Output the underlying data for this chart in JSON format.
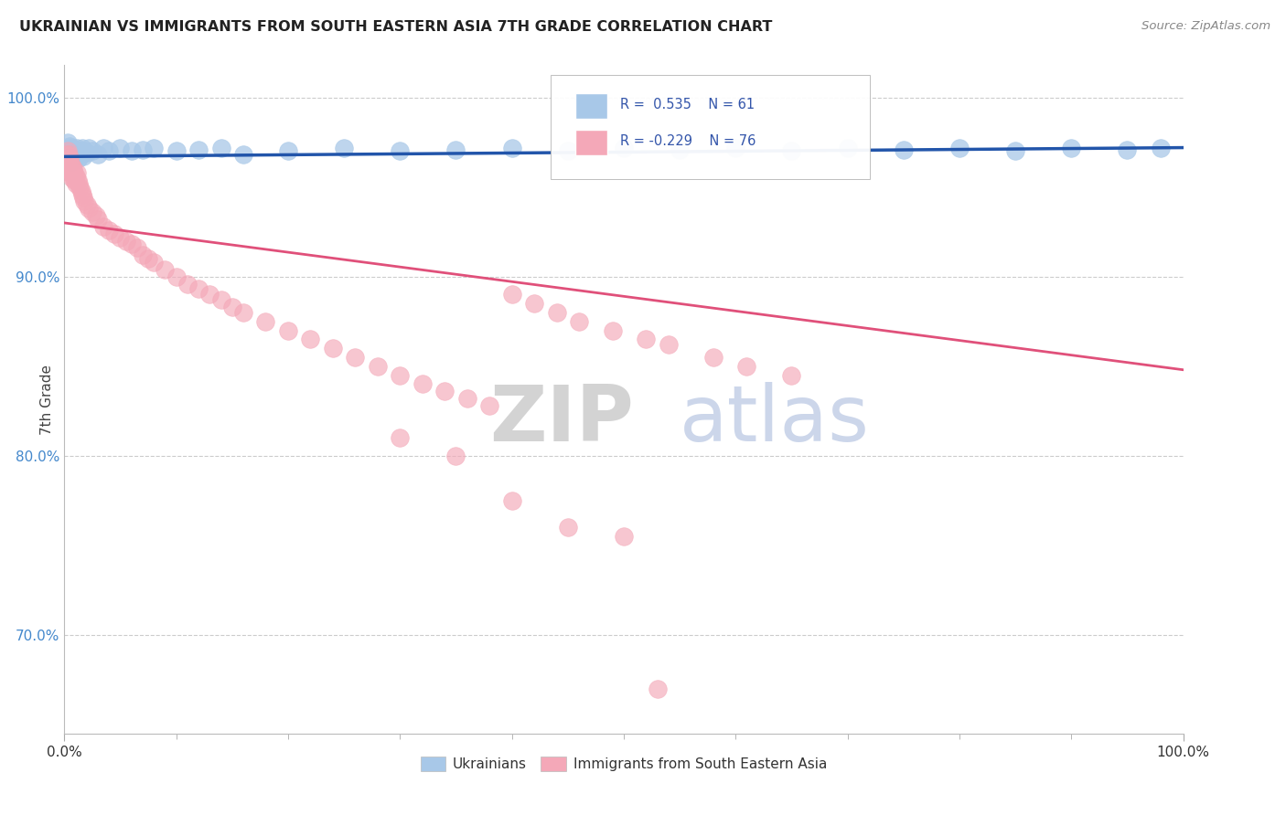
{
  "title": "UKRAINIAN VS IMMIGRANTS FROM SOUTH EASTERN ASIA 7TH GRADE CORRELATION CHART",
  "source": "Source: ZipAtlas.com",
  "ylabel": "7th Grade",
  "xlim": [
    0.0,
    1.0
  ],
  "ylim": [
    0.645,
    1.018
  ],
  "yticks": [
    0.7,
    0.8,
    0.9,
    1.0
  ],
  "ytick_labels": [
    "70.0%",
    "80.0%",
    "90.0%",
    "100.0%"
  ],
  "xtick_labels": [
    "0.0%",
    "100.0%"
  ],
  "blue_color": "#a8c8e8",
  "pink_color": "#f4a8b8",
  "blue_line_color": "#2255aa",
  "pink_line_color": "#e0507a",
  "watermark_zip": "ZIP",
  "watermark_atlas": "atlas",
  "legend_label_blue": "Ukrainians",
  "legend_label_pink": "Immigrants from South Eastern Asia",
  "background_color": "#ffffff",
  "grid_color": "#cccccc",
  "blue_x": [
    0.002,
    0.003,
    0.003,
    0.004,
    0.004,
    0.004,
    0.005,
    0.005,
    0.005,
    0.005,
    0.006,
    0.006,
    0.006,
    0.007,
    0.007,
    0.007,
    0.008,
    0.008,
    0.009,
    0.009,
    0.01,
    0.01,
    0.011,
    0.012,
    0.013,
    0.014,
    0.015,
    0.016,
    0.017,
    0.018,
    0.02,
    0.022,
    0.025,
    0.03,
    0.035,
    0.04,
    0.05,
    0.06,
    0.07,
    0.08,
    0.1,
    0.12,
    0.14,
    0.16,
    0.2,
    0.25,
    0.3,
    0.35,
    0.4,
    0.45,
    0.5,
    0.55,
    0.6,
    0.65,
    0.7,
    0.75,
    0.8,
    0.85,
    0.9,
    0.95,
    0.98
  ],
  "blue_y": [
    0.97,
    0.975,
    0.968,
    0.972,
    0.966,
    0.969,
    0.971,
    0.967,
    0.973,
    0.965,
    0.97,
    0.968,
    0.964,
    0.972,
    0.968,
    0.966,
    0.97,
    0.967,
    0.971,
    0.965,
    0.97,
    0.968,
    0.972,
    0.969,
    0.966,
    0.97,
    0.968,
    0.972,
    0.967,
    0.97,
    0.969,
    0.972,
    0.97,
    0.968,
    0.972,
    0.97,
    0.972,
    0.97,
    0.971,
    0.972,
    0.97,
    0.971,
    0.972,
    0.968,
    0.97,
    0.972,
    0.97,
    0.971,
    0.972,
    0.97,
    0.972,
    0.971,
    0.972,
    0.97,
    0.972,
    0.971,
    0.972,
    0.97,
    0.972,
    0.971,
    0.972
  ],
  "pink_x": [
    0.002,
    0.003,
    0.003,
    0.004,
    0.004,
    0.005,
    0.005,
    0.005,
    0.006,
    0.006,
    0.007,
    0.007,
    0.008,
    0.008,
    0.009,
    0.009,
    0.01,
    0.01,
    0.011,
    0.012,
    0.013,
    0.014,
    0.015,
    0.016,
    0.017,
    0.018,
    0.02,
    0.022,
    0.025,
    0.028,
    0.03,
    0.035,
    0.04,
    0.045,
    0.05,
    0.055,
    0.06,
    0.065,
    0.07,
    0.075,
    0.08,
    0.09,
    0.1,
    0.11,
    0.12,
    0.13,
    0.14,
    0.15,
    0.16,
    0.18,
    0.2,
    0.22,
    0.24,
    0.26,
    0.28,
    0.3,
    0.32,
    0.34,
    0.36,
    0.38,
    0.4,
    0.42,
    0.44,
    0.46,
    0.49,
    0.52,
    0.54,
    0.58,
    0.61,
    0.65,
    0.3,
    0.35,
    0.4,
    0.45,
    0.5,
    0.53
  ],
  "pink_y": [
    0.968,
    0.97,
    0.965,
    0.968,
    0.962,
    0.966,
    0.96,
    0.964,
    0.962,
    0.958,
    0.961,
    0.955,
    0.96,
    0.956,
    0.958,
    0.954,
    0.956,
    0.952,
    0.958,
    0.954,
    0.952,
    0.95,
    0.948,
    0.946,
    0.944,
    0.942,
    0.94,
    0.938,
    0.936,
    0.934,
    0.932,
    0.928,
    0.926,
    0.924,
    0.922,
    0.92,
    0.918,
    0.916,
    0.912,
    0.91,
    0.908,
    0.904,
    0.9,
    0.896,
    0.893,
    0.89,
    0.887,
    0.883,
    0.88,
    0.875,
    0.87,
    0.865,
    0.86,
    0.855,
    0.85,
    0.845,
    0.84,
    0.836,
    0.832,
    0.828,
    0.89,
    0.885,
    0.88,
    0.875,
    0.87,
    0.865,
    0.862,
    0.855,
    0.85,
    0.845,
    0.81,
    0.8,
    0.775,
    0.76,
    0.755,
    0.67
  ]
}
